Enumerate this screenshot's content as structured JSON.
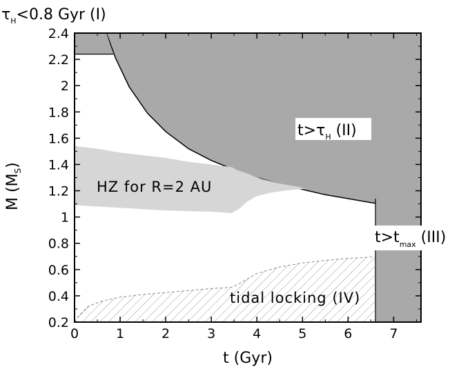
{
  "chart_data": {
    "type": "area",
    "title": "",
    "xlabel": "t (Gyr)",
    "ylabel": "M (M",
    "ylabel_sub": "S",
    "ylabel_close": ")",
    "xlim": [
      0,
      7.6
    ],
    "ylim": [
      0.2,
      2.4
    ],
    "x_ticks": [
      0,
      1,
      2,
      3,
      4,
      5,
      6,
      7
    ],
    "y_ticks": [
      0.2,
      0.4,
      0.6,
      0.8,
      1,
      1.2,
      1.4,
      1.6,
      1.8,
      2,
      2.2,
      2.4
    ],
    "x_tick_labels": [
      "0",
      "1",
      "2",
      "3",
      "4",
      "5",
      "6",
      "7"
    ],
    "y_tick_labels": [
      "0.2",
      "0.4",
      "0.6",
      "0.8",
      "1",
      "1.2",
      "1.4",
      "1.6",
      "1.8",
      "2",
      "2.2",
      "2.4"
    ],
    "grid": false,
    "colors": {
      "dark_region": "#a9a9a9",
      "hz_region": "#d6d6d6",
      "hatch": "#9a9a9a"
    },
    "regions": {
      "region_I": {
        "label_main": "τ",
        "label_sub": "H",
        "label_rest": "<0.8 Gyr (I)",
        "m_min": 2.24,
        "polygon": [
          [
            0,
            2.24
          ],
          [
            0.85,
            2.24
          ],
          [
            0.7,
            2.4
          ],
          [
            0,
            2.4
          ]
        ]
      },
      "region_II": {
        "label_a": "t>τ",
        "label_sub": "H",
        "label_b": " (II)",
        "boundary": [
          [
            0.7,
            2.4
          ],
          [
            0.9,
            2.21
          ],
          [
            1.2,
            1.99
          ],
          [
            1.6,
            1.79
          ],
          [
            2,
            1.65
          ],
          [
            2.5,
            1.52
          ],
          [
            3,
            1.43
          ],
          [
            3.5,
            1.36
          ],
          [
            4,
            1.3
          ],
          [
            4.5,
            1.25
          ],
          [
            5,
            1.21
          ],
          [
            5.5,
            1.17
          ],
          [
            6,
            1.14
          ],
          [
            6.5,
            1.11
          ],
          [
            7,
            1.085
          ],
          [
            7.6,
            1.06
          ]
        ]
      },
      "region_III": {
        "label_a": "t>t",
        "label_sub": "max",
        "label_b": " (III)",
        "t_min": 6.6
      },
      "hz": {
        "label": "HZ for R=2 AU",
        "upper": [
          [
            0,
            1.54
          ],
          [
            0.5,
            1.52
          ],
          [
            1,
            1.49
          ],
          [
            1.5,
            1.47
          ],
          [
            2,
            1.45
          ],
          [
            2.5,
            1.42
          ],
          [
            3,
            1.4
          ],
          [
            3.45,
            1.38
          ],
          [
            3.55,
            1.36
          ],
          [
            3.8,
            1.33
          ],
          [
            4.1,
            1.29
          ],
          [
            4.5,
            1.255
          ],
          [
            4.9,
            1.23
          ],
          [
            5.1,
            1.215
          ]
        ],
        "lower": [
          [
            5.1,
            1.215
          ],
          [
            4.7,
            1.205
          ],
          [
            4.3,
            1.185
          ],
          [
            4.0,
            1.16
          ],
          [
            3.8,
            1.12
          ],
          [
            3.6,
            1.06
          ],
          [
            3.45,
            1.03
          ],
          [
            3,
            1.04
          ],
          [
            2.5,
            1.045
          ],
          [
            2,
            1.05
          ],
          [
            1.5,
            1.06
          ],
          [
            1,
            1.07
          ],
          [
            0.5,
            1.08
          ],
          [
            0,
            1.09
          ]
        ]
      },
      "tidal_locking": {
        "label": "tidal locking (IV)",
        "upper": [
          [
            0,
            0.2
          ],
          [
            0.1,
            0.25
          ],
          [
            0.3,
            0.32
          ],
          [
            0.6,
            0.36
          ],
          [
            1,
            0.39
          ],
          [
            1.5,
            0.41
          ],
          [
            2,
            0.425
          ],
          [
            2.5,
            0.44
          ],
          [
            3,
            0.455
          ],
          [
            3.45,
            0.465
          ],
          [
            3.6,
            0.49
          ],
          [
            3.8,
            0.53
          ],
          [
            4,
            0.57
          ],
          [
            4.5,
            0.62
          ],
          [
            5,
            0.65
          ],
          [
            5.5,
            0.67
          ],
          [
            6,
            0.685
          ],
          [
            6.5,
            0.695
          ],
          [
            6.6,
            0.695
          ]
        ]
      }
    }
  }
}
